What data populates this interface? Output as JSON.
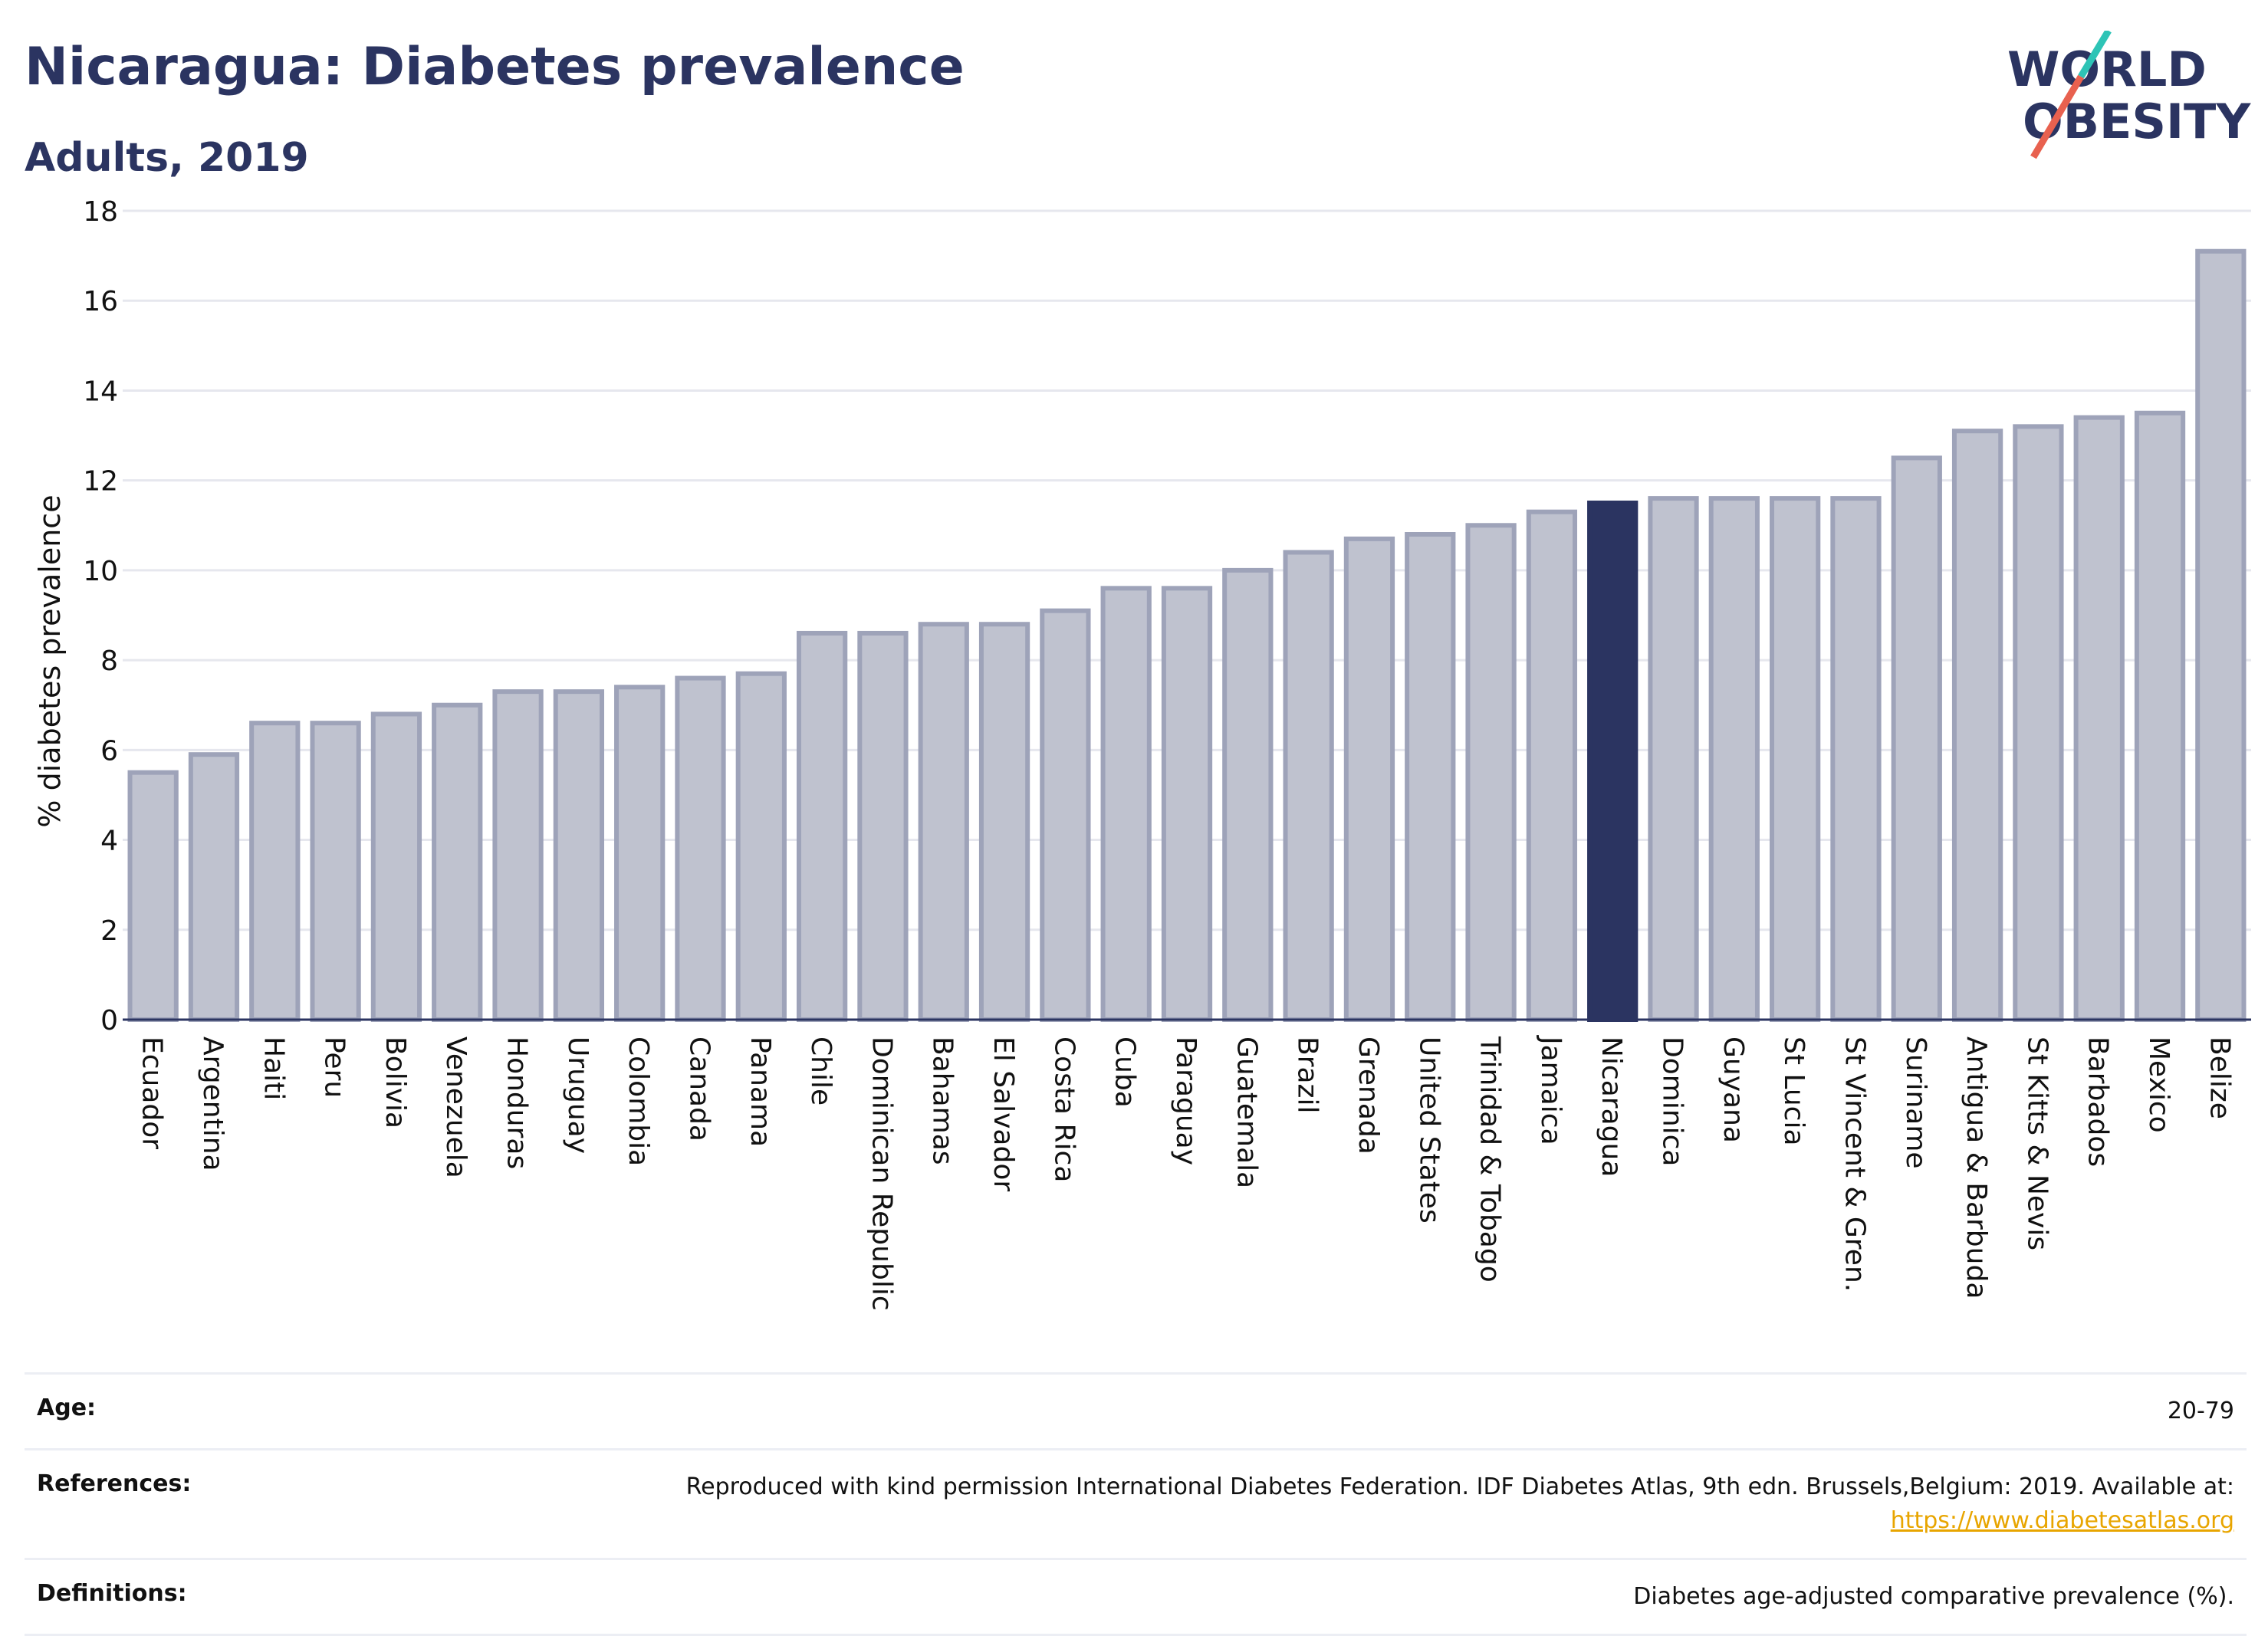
{
  "header": {
    "title": "Nicaragua: Diabetes prevalence",
    "subtitle": "Adults, 2019"
  },
  "logo": {
    "line1": "WORLD",
    "line2": "OBESITY",
    "accent_colors": [
      "#2ec4b6",
      "#e8614f"
    ]
  },
  "chart_data": {
    "type": "bar",
    "ylabel": "% diabetes prevalence",
    "ylim": [
      0,
      18
    ],
    "yticks": [
      0,
      2,
      4,
      6,
      8,
      10,
      12,
      14,
      16,
      18
    ],
    "grid": true,
    "highlight": "Nicaragua",
    "colors": {
      "highlight": "#2b3461",
      "default": "#bfc2cf",
      "border": "#9ea3b9"
    },
    "categories": [
      "Ecuador",
      "Argentina",
      "Haiti",
      "Peru",
      "Bolivia",
      "Venezuela",
      "Honduras",
      "Uruguay",
      "Colombia",
      "Canada",
      "Panama",
      "Chile",
      "Dominican Republic",
      "Bahamas",
      "El Salvador",
      "Costa Rica",
      "Cuba",
      "Paraguay",
      "Guatemala",
      "Brazil",
      "Grenada",
      "United States",
      "Trinidad & Tobago",
      "Jamaica",
      "Nicaragua",
      "Dominica",
      "Guyana",
      "St Lucia",
      "St Vincent & Gren.",
      "Suriname",
      "Antigua & Barbuda",
      "St Kitts & Nevis",
      "Barbados",
      "Mexico",
      "Belize"
    ],
    "values": [
      5.5,
      5.9,
      6.6,
      6.6,
      6.8,
      7.0,
      7.3,
      7.3,
      7.4,
      7.6,
      7.7,
      8.6,
      8.6,
      8.8,
      8.8,
      9.1,
      9.6,
      9.6,
      10.0,
      10.4,
      10.7,
      10.8,
      11.0,
      11.3,
      11.5,
      11.6,
      11.6,
      11.6,
      11.6,
      12.5,
      13.1,
      13.2,
      13.4,
      13.5,
      17.1
    ]
  },
  "info": {
    "age_label": "Age:",
    "age_value": "20-79",
    "references_label": "References:",
    "references_text": "Reproduced with kind permission International Diabetes Federation. IDF Diabetes Atlas, 9th edn. Brussels,Belgium: 2019. Available at:",
    "references_link": "https://www.diabetesatlas.org",
    "definitions_label": "Definitions:",
    "definitions_value": "Diabetes age-adjusted comparative prevalence (%)."
  }
}
